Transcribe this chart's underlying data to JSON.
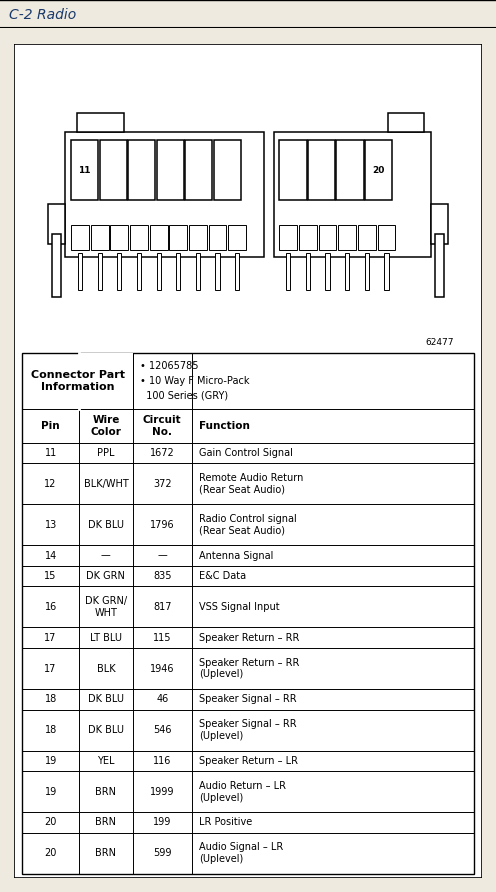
{
  "title": "C-2 Radio",
  "title_bg": "#dedad2",
  "diagram_num": "62477",
  "connector_info_left": "Connector Part\nInformation",
  "connector_info_right": "• 12065785\n• 10 Way F Micro-Pack\n  100 Series (GRY)",
  "rows": [
    [
      "11",
      "PPL",
      "1672",
      "Gain Control Signal"
    ],
    [
      "12",
      "BLK/WHT",
      "372",
      "Remote Audio Return\n(Rear Seat Audio)"
    ],
    [
      "13",
      "DK BLU",
      "1796",
      "Radio Control signal\n(Rear Seat Audio)"
    ],
    [
      "14",
      "—",
      "—",
      "Antenna Signal"
    ],
    [
      "15",
      "DK GRN",
      "835",
      "E&C Data"
    ],
    [
      "16",
      "DK GRN/\nWHT",
      "817",
      "VSS Signal Input"
    ],
    [
      "17",
      "LT BLU",
      "115",
      "Speaker Return – RR"
    ],
    [
      "17",
      "BLK",
      "1946",
      "Speaker Return – RR\n(Uplevel)"
    ],
    [
      "18",
      "DK BLU",
      "46",
      "Speaker Signal – RR"
    ],
    [
      "18",
      "DK BLU",
      "546",
      "Speaker Signal – RR\n(Uplevel)"
    ],
    [
      "19",
      "YEL",
      "116",
      "Speaker Return – LR"
    ],
    [
      "19",
      "BRN",
      "1999",
      "Audio Return – LR\n(Uplevel)"
    ],
    [
      "20",
      "BRN",
      "199",
      "LR Positive"
    ],
    [
      "20",
      "BRN",
      "599",
      "Audio Signal – LR\n(Uplevel)"
    ]
  ],
  "row_heights": [
    1,
    2,
    2,
    1,
    1,
    2,
    1,
    2,
    1,
    2,
    1,
    2,
    1,
    2
  ],
  "bg_color": "#eeeae0",
  "table_bg": "#ffffff",
  "font_size": 7.0,
  "header_font_size": 7.5
}
